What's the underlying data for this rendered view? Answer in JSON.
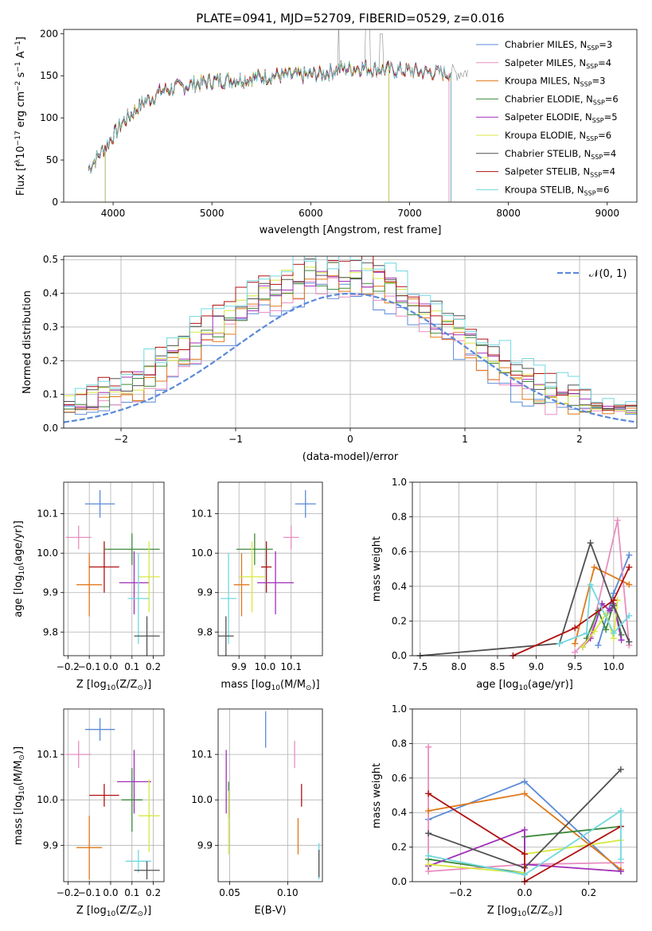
{
  "colors": {
    "Chabrier MILES": "#5b8ad8",
    "Salpeter MILES": "#e88ec0",
    "Kroupa MILES": "#e07818",
    "Chabrier ELODIE": "#3b8a3b",
    "Salpeter ELODIE": "#a030b8",
    "Kroupa ELODIE": "#d8e840",
    "Chabrier STELIB": "#505050",
    "Salpeter STELIB": "#b01010",
    "Kroupa STELIB": "#70d8e0"
  },
  "chart_data": [
    {
      "id": "spectrum",
      "type": "line",
      "title": "PLATE=0941, MJD=52709, FIBERID=0529, z=0.016",
      "xlabel": "wavelength [Angstrom, rest frame]",
      "ylabel_parts": [
        "Flux [f",
        "λ",
        "10",
        "−17",
        " erg cm",
        "−2",
        " s",
        "−1",
        " A",
        "−1",
        "]"
      ],
      "xlim": [
        3500,
        9300
      ],
      "ylim": [
        0,
        205
      ],
      "xticks": [
        4000,
        5000,
        6000,
        7000,
        8000,
        9000
      ],
      "yticks": [
        0,
        50,
        100,
        150,
        200
      ],
      "legend_position": "top-right",
      "series": [
        {
          "name": "Chabrier MILES",
          "nssp": "3"
        },
        {
          "name": "Salpeter MILES",
          "nssp": "4"
        },
        {
          "name": "Kroupa MILES",
          "nssp": "3"
        },
        {
          "name": "Chabrier ELODIE",
          "nssp": "6"
        },
        {
          "name": "Salpeter ELODIE",
          "nssp": "5"
        },
        {
          "name": "Kroupa ELODIE",
          "nssp": "6"
        },
        {
          "name": "Chabrier STELIB",
          "nssp": "4"
        },
        {
          "name": "Salpeter STELIB",
          "nssp": "4"
        },
        {
          "name": "Kroupa STELIB",
          "nssp": "6"
        }
      ],
      "continuum": [
        [
          3750,
          40
        ],
        [
          3850,
          55
        ],
        [
          3950,
          70
        ],
        [
          4100,
          95
        ],
        [
          4300,
          118
        ],
        [
          4500,
          132
        ],
        [
          4800,
          140
        ],
        [
          5100,
          145
        ],
        [
          5300,
          146
        ],
        [
          5600,
          150
        ],
        [
          5900,
          150
        ],
        [
          6100,
          152
        ],
        [
          6300,
          158
        ],
        [
          6500,
          160
        ],
        [
          6800,
          157
        ],
        [
          7000,
          156
        ],
        [
          7200,
          154
        ],
        [
          7400,
          153
        ],
        [
          7600,
          155
        ]
      ],
      "model_end": {
        "Chabrier MILES": 7400,
        "Salpeter MILES": 7400,
        "Kroupa MILES": 7420,
        "Chabrier ELODIE": 6790,
        "Salpeter ELODIE": 6790,
        "Kroupa ELODIE": 6790,
        "Chabrier STELIB": 7420,
        "Salpeter STELIB": 7420,
        "Kroupa STELIB": 7420
      }
    },
    {
      "id": "residuals",
      "type": "line",
      "xlabel": "(data-model)/error",
      "ylabel": "Normed distribution",
      "xlim": [
        -2.5,
        2.5
      ],
      "ylim": [
        0,
        0.51
      ],
      "xticks": [
        -2,
        -1,
        0,
        1,
        2
      ],
      "yticks": [
        0.0,
        0.1,
        0.2,
        0.3,
        0.4,
        0.5
      ],
      "legend_label": "𝒩(0, 1)",
      "legend_color": "#5b8ad8",
      "legend_position": "top-right",
      "bin_width": 0.1
    },
    {
      "id": "age-vs-Z",
      "type": "scatter",
      "xlabel_parts": [
        "Z [log",
        "10",
        "(Z/Z",
        "⊙",
        ")]"
      ],
      "ylabel_parts": [
        "age  [log",
        "10",
        "(age/yr)]"
      ],
      "xlim": [
        -0.22,
        0.25
      ],
      "ylim": [
        9.74,
        10.18
      ],
      "xticks": [
        -0.2,
        -0.1,
        0.0,
        0.1,
        0.2
      ],
      "yticks": [
        9.8,
        9.9,
        10.0,
        10.1
      ],
      "points": [
        {
          "series": "Chabrier MILES",
          "x": -0.05,
          "y": 10.125,
          "xerr": 0.07,
          "yerr": 0.035
        },
        {
          "series": "Salpeter MILES",
          "x": -0.15,
          "y": 10.04,
          "xerr": 0.06,
          "yerr": 0.03
        },
        {
          "series": "Kroupa MILES",
          "x": -0.1,
          "y": 9.92,
          "xerr": 0.06,
          "yerr": 0.08
        },
        {
          "series": "Salpeter STELIB",
          "x": -0.03,
          "y": 9.965,
          "xerr": 0.07,
          "yerr": 0.065
        },
        {
          "series": "Chabrier ELODIE",
          "x": 0.1,
          "y": 10.01,
          "xerr": 0.13,
          "yerr": 0.04
        },
        {
          "series": "Salpeter ELODIE",
          "x": 0.11,
          "y": 9.925,
          "xerr": 0.07,
          "yerr": 0.08
        },
        {
          "series": "Kroupa ELODIE",
          "x": 0.18,
          "y": 9.94,
          "xerr": 0.05,
          "yerr": 0.09
        },
        {
          "series": "Kroupa STELIB",
          "x": 0.13,
          "y": 9.885,
          "xerr": 0.05,
          "yerr": 0.115
        },
        {
          "series": "Chabrier STELIB",
          "x": 0.17,
          "y": 9.79,
          "xerr": 0.06,
          "yerr": 0.05
        }
      ]
    },
    {
      "id": "age-vs-mass",
      "type": "scatter",
      "xlabel_parts": [
        "mass [log",
        "10",
        "(M/M",
        "⊙",
        ")]"
      ],
      "ylabel_parts": [],
      "xlim": [
        9.82,
        10.22
      ],
      "ylim": [
        9.74,
        10.18
      ],
      "xticks": [
        9.9,
        10.0,
        10.1
      ],
      "yticks": [
        9.8,
        9.9,
        10.0,
        10.1
      ],
      "points": [
        {
          "series": "Chabrier MILES",
          "x": 10.155,
          "y": 10.125,
          "xerr": 0.04,
          "yerr": 0.035
        },
        {
          "series": "Salpeter MILES",
          "x": 10.1,
          "y": 10.04,
          "xerr": 0.03,
          "yerr": 0.03
        },
        {
          "series": "Kroupa MILES",
          "x": 9.91,
          "y": 9.92,
          "xerr": 0.03,
          "yerr": 0.08
        },
        {
          "series": "Salpeter STELIB",
          "x": 10.005,
          "y": 9.965,
          "xerr": 0.02,
          "yerr": 0.065
        },
        {
          "series": "Chabrier ELODIE",
          "x": 9.96,
          "y": 10.01,
          "xerr": 0.07,
          "yerr": 0.04
        },
        {
          "series": "Salpeter ELODIE",
          "x": 10.04,
          "y": 9.925,
          "xerr": 0.07,
          "yerr": 0.08
        },
        {
          "series": "Kroupa ELODIE",
          "x": 9.95,
          "y": 9.94,
          "xerr": 0.05,
          "yerr": 0.09
        },
        {
          "series": "Kroupa STELIB",
          "x": 9.86,
          "y": 9.885,
          "xerr": 0.03,
          "yerr": 0.115
        },
        {
          "series": "Chabrier STELIB",
          "x": 9.85,
          "y": 9.79,
          "xerr": 0.03,
          "yerr": 0.05
        }
      ]
    },
    {
      "id": "weight-vs-age",
      "type": "line",
      "xlabel_parts": [
        "age  [log",
        "10",
        "(age/yr)]"
      ],
      "ylabel": "mass weight",
      "xlim": [
        7.4,
        10.3
      ],
      "ylim": [
        0,
        1.0
      ],
      "xticks": [
        7.5,
        8.0,
        8.5,
        9.0,
        9.5,
        10.0
      ],
      "yticks": [
        0.0,
        0.2,
        0.4,
        0.6,
        0.8,
        1.0
      ],
      "series": [
        {
          "name": "Chabrier MILES",
          "x": [
            9.8,
            10.0,
            10.2
          ],
          "y": [
            0.06,
            0.36,
            0.58
          ]
        },
        {
          "name": "Salpeter MILES",
          "x": [
            9.5,
            9.7,
            10.05,
            10.2
          ],
          "y": [
            0.02,
            0.11,
            0.78,
            0.06
          ]
        },
        {
          "name": "Kroupa MILES",
          "x": [
            9.5,
            9.75,
            10.2
          ],
          "y": [
            0.07,
            0.51,
            0.41
          ]
        },
        {
          "name": "Chabrier ELODIE",
          "x": [
            9.65,
            9.8,
            9.9,
            10.0,
            10.1
          ],
          "y": [
            0.1,
            0.26,
            0.15,
            0.3,
            0.12
          ]
        },
        {
          "name": "Salpeter ELODIE",
          "x": [
            9.6,
            9.7,
            9.85,
            9.95,
            10.0,
            10.1
          ],
          "y": [
            0.05,
            0.1,
            0.3,
            0.26,
            0.3,
            0.09
          ]
        },
        {
          "name": "Kroupa ELODIE",
          "x": [
            9.6,
            9.75,
            9.9,
            10.0,
            10.05
          ],
          "y": [
            0.05,
            0.14,
            0.24,
            0.1,
            0.32
          ]
        },
        {
          "name": "Chabrier STELIB",
          "x": [
            7.5,
            9.3,
            9.7,
            10.0,
            10.2
          ],
          "y": [
            0.0,
            0.07,
            0.65,
            0.29,
            0.08
          ]
        },
        {
          "name": "Salpeter STELIB",
          "x": [
            8.7,
            9.5,
            10.0,
            10.2
          ],
          "y": [
            0.0,
            0.16,
            0.32,
            0.51
          ]
        },
        {
          "name": "Kroupa STELIB",
          "x": [
            9.3,
            9.65,
            9.7,
            10.0,
            10.2
          ],
          "y": [
            0.07,
            0.13,
            0.41,
            0.13,
            0.23
          ]
        }
      ]
    },
    {
      "id": "mass-vs-Z",
      "type": "scatter",
      "xlabel_parts": [
        "Z [log",
        "10",
        "(Z/Z",
        "⊙",
        ")]"
      ],
      "ylabel_parts": [
        "mass [log",
        "10",
        "(M/M",
        "⊙",
        ")]"
      ],
      "xlim": [
        -0.22,
        0.25
      ],
      "ylim": [
        9.82,
        10.2
      ],
      "xticks": [
        -0.2,
        -0.1,
        0.0,
        0.1,
        0.2
      ],
      "yticks": [
        9.9,
        10.0,
        10.1
      ],
      "points": [
        {
          "series": "Chabrier MILES",
          "x": -0.05,
          "y": 10.155,
          "xerr": 0.07,
          "yerr": 0.025
        },
        {
          "series": "Salpeter MILES",
          "x": -0.15,
          "y": 10.1,
          "xerr": 0.06,
          "yerr": 0.03
        },
        {
          "series": "Kroupa MILES",
          "x": -0.1,
          "y": 9.895,
          "xerr": 0.06,
          "yerr": 0.07
        },
        {
          "series": "Salpeter STELIB",
          "x": -0.03,
          "y": 10.01,
          "xerr": 0.07,
          "yerr": 0.025
        },
        {
          "series": "Chabrier ELODIE",
          "x": 0.1,
          "y": 10.0,
          "xerr": 0.05,
          "yerr": 0.07
        },
        {
          "series": "Salpeter ELODIE",
          "x": 0.11,
          "y": 10.04,
          "xerr": 0.08,
          "yerr": 0.07
        },
        {
          "series": "Kroupa ELODIE",
          "x": 0.18,
          "y": 9.965,
          "xerr": 0.05,
          "yerr": 0.08
        },
        {
          "series": "Kroupa STELIB",
          "x": 0.13,
          "y": 9.865,
          "xerr": 0.06,
          "yerr": 0.025
        },
        {
          "series": "Chabrier STELIB",
          "x": 0.17,
          "y": 9.845,
          "xerr": 0.06,
          "yerr": 0.02
        }
      ]
    },
    {
      "id": "mass-vs-ebv",
      "type": "scatter",
      "xlabel": "E(B-V)",
      "xlim": [
        0.04,
        0.13
      ],
      "ylim": [
        9.82,
        10.2
      ],
      "xticks": [
        0.05,
        0.1
      ],
      "yticks": [
        9.9,
        10.0,
        10.1
      ],
      "points": [
        {
          "series": "Chabrier MILES",
          "x": 0.081,
          "y": 10.155,
          "xerr": 0.0,
          "yerr": 0.04
        },
        {
          "series": "Salpeter MILES",
          "x": 0.106,
          "y": 10.1,
          "xerr": 0.0,
          "yerr": 0.03
        },
        {
          "series": "Kroupa MILES",
          "x": 0.109,
          "y": 9.92,
          "xerr": 0.0,
          "yerr": 0.04
        },
        {
          "series": "Salpeter STELIB",
          "x": 0.112,
          "y": 10.01,
          "xerr": 0.0,
          "yerr": 0.025
        },
        {
          "series": "Chabrier ELODIE",
          "x": 0.049,
          "y": 10.0,
          "xerr": 0.0,
          "yerr": 0.04
        },
        {
          "series": "Salpeter ELODIE",
          "x": 0.047,
          "y": 10.04,
          "xerr": 0.0,
          "yerr": 0.07
        },
        {
          "series": "Kroupa ELODIE",
          "x": 0.049,
          "y": 9.95,
          "xerr": 0.0,
          "yerr": 0.07
        },
        {
          "series": "Kroupa STELIB",
          "x": 0.127,
          "y": 9.865,
          "xerr": 0.0,
          "yerr": 0.04
        },
        {
          "series": "Chabrier STELIB",
          "x": 0.127,
          "y": 9.86,
          "xerr": 0.0,
          "yerr": 0.03
        }
      ]
    },
    {
      "id": "weight-vs-Z",
      "type": "line",
      "xlabel_parts": [
        "Z [log",
        "10",
        "(Z/Z",
        "⊙",
        ")]"
      ],
      "ylabel": "mass weight",
      "xlim": [
        -0.35,
        0.35
      ],
      "ylim": [
        0,
        1.0
      ],
      "xticks": [
        -0.2,
        0.0,
        0.2
      ],
      "yticks": [
        0.0,
        0.2,
        0.4,
        0.6,
        0.8,
        1.0
      ],
      "series": [
        {
          "name": "Chabrier MILES",
          "x": [
            -0.3,
            0.0,
            0.3
          ],
          "y": [
            0.36,
            0.58,
            0.06
          ]
        },
        {
          "name": "Salpeter MILES",
          "x": [
            -0.3,
            -0.3,
            0.0,
            0.3
          ],
          "y": [
            0.78,
            0.06,
            0.1,
            0.11
          ]
        },
        {
          "name": "Kroupa MILES",
          "x": [
            -0.3,
            0.0,
            0.3
          ],
          "y": [
            0.41,
            0.51,
            0.07
          ]
        },
        {
          "name": "Chabrier ELODIE",
          "x": [
            -0.3,
            0.0,
            0.0,
            0.3
          ],
          "y": [
            0.13,
            0.05,
            0.26,
            0.32
          ]
        },
        {
          "name": "Salpeter ELODIE",
          "x": [
            -0.3,
            0.0,
            0.0,
            0.3
          ],
          "y": [
            0.09,
            0.3,
            0.1,
            0.06
          ]
        },
        {
          "name": "Kroupa ELODIE",
          "x": [
            -0.3,
            0.0,
            0.0,
            0.3
          ],
          "y": [
            0.1,
            0.05,
            0.16,
            0.24
          ]
        },
        {
          "name": "Chabrier STELIB",
          "x": [
            -0.3,
            0.0,
            0.3
          ],
          "y": [
            0.28,
            0.08,
            0.65
          ]
        },
        {
          "name": "Salpeter STELIB",
          "x": [
            -0.3,
            0.0,
            0.0,
            0.3
          ],
          "y": [
            0.51,
            0.16,
            0.0,
            0.32
          ]
        },
        {
          "name": "Kroupa STELIB",
          "x": [
            -0.3,
            0.0,
            0.3,
            0.3
          ],
          "y": [
            0.15,
            0.04,
            0.41,
            0.13
          ]
        }
      ]
    }
  ]
}
